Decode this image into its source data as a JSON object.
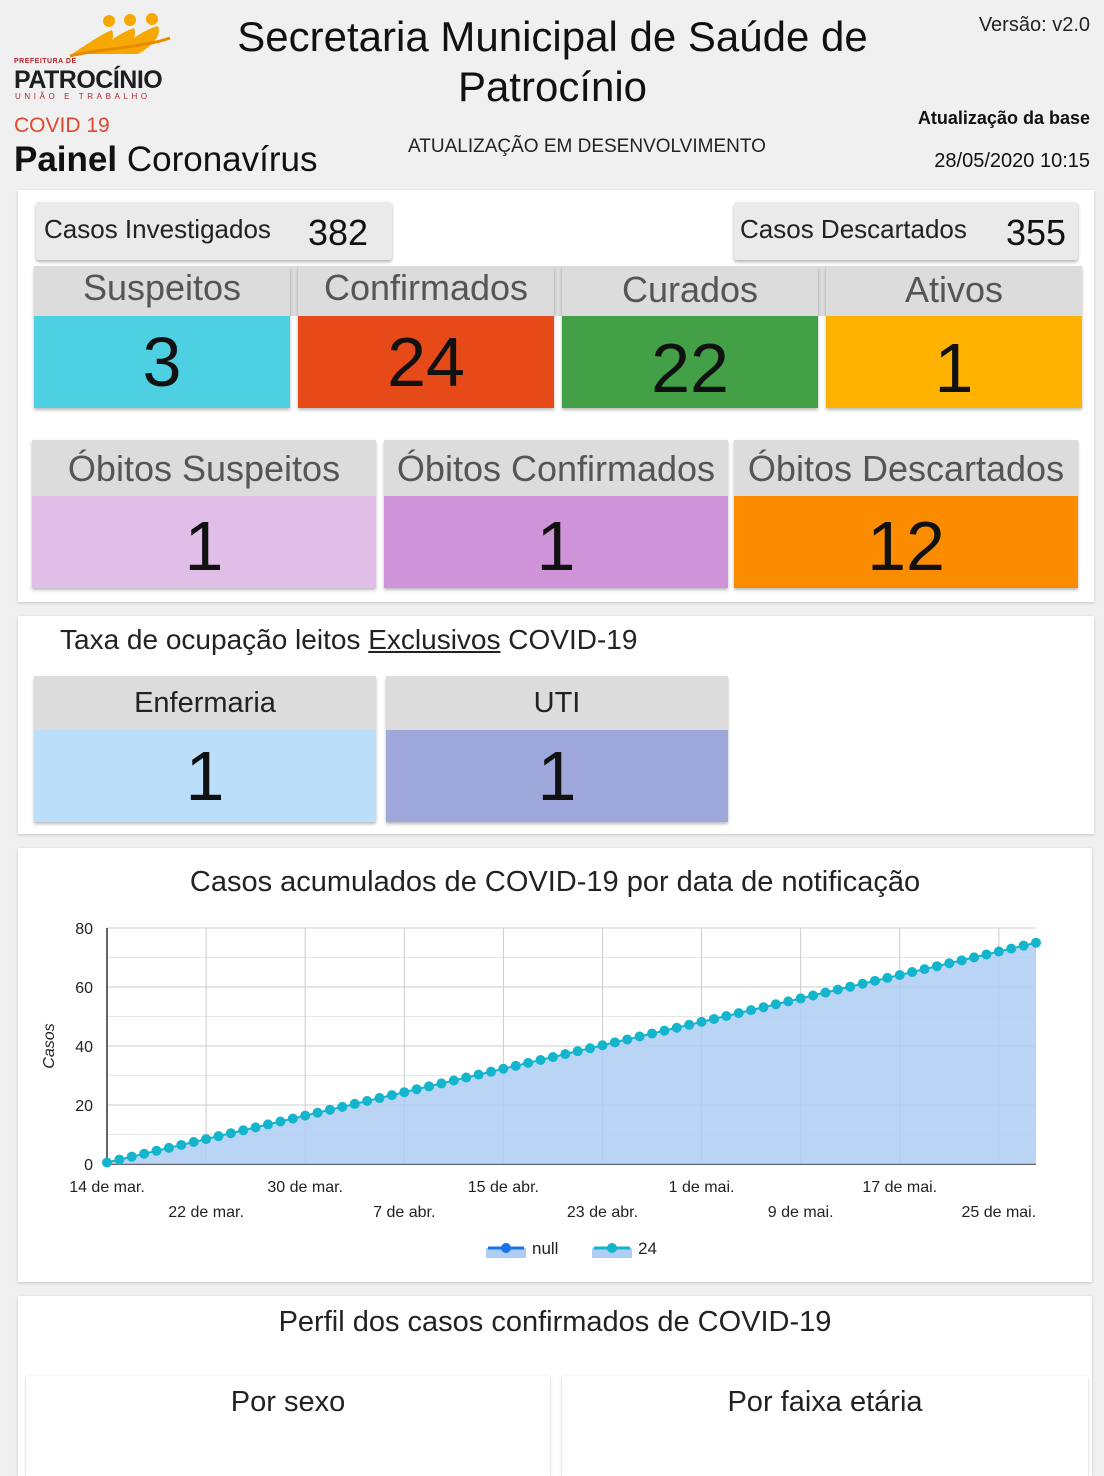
{
  "header": {
    "logo_small": "PREFEITURA DE",
    "logo_main": "PATROCÍNIO",
    "logo_sub": "UNIÃO E TRABALHO",
    "title": "Secretaria Municipal de Saúde de Patrocínio",
    "version": "Versão: v2.0",
    "covid_label": "COVID 19",
    "painel_bold": "Painel",
    "painel_rest": "Coronavírus",
    "dev_notice": "ATUALIZAÇÃO EM DESENVOLVIMENTO",
    "update_label": "Atualização da base",
    "update_date": "28/05/2020 10:15"
  },
  "totals": {
    "investigados_label": "Casos Investigados",
    "investigados_value": "382",
    "descartados_label": "Casos Descartados",
    "descartados_value": "355"
  },
  "status_cards": [
    {
      "label": "Suspeitos",
      "value": "3",
      "color": "#4dd0e1"
    },
    {
      "label": "Confirmados",
      "value": "24",
      "color": "#e64a19"
    },
    {
      "label": "Curados",
      "value": "22",
      "color": "#43a047"
    },
    {
      "label": "Ativos",
      "value": "1",
      "color": "#ffb300"
    }
  ],
  "obitos_cards": [
    {
      "label": "Óbitos Suspeitos",
      "value": "1",
      "color": "#e1bee7"
    },
    {
      "label": "Óbitos Confirmados",
      "value": "1",
      "color": "#ce93d8"
    },
    {
      "label": "Óbitos Descartados",
      "value": "12",
      "color": "#fb8c00"
    }
  ],
  "occupancy": {
    "title_pre": "Taxa de ocupação leitos ",
    "title_underlined": "Exclusivos",
    "title_post": " COVID-19",
    "cards": [
      {
        "label": "Enfermaria",
        "value": "1",
        "color": "#bbdefb"
      },
      {
        "label": "UTI",
        "value": "1",
        "color": "#9fa8da"
      }
    ]
  },
  "chart_data": {
    "type": "area",
    "title": "Casos acumulados de COVID-19 por data de notificação",
    "xlabel": "",
    "ylabel": "Casos",
    "ylim": [
      0,
      80
    ],
    "yticks": [
      0,
      20,
      40,
      60,
      80
    ],
    "xlim": [
      "2020-03-14",
      "2020-05-28"
    ],
    "xticks_row1": [
      "14 de mar.",
      "30 de mar.",
      "15 de abr.",
      "1 de mai.",
      "17 de mai."
    ],
    "xticks_row2": [
      "22 de mar.",
      "7 de abr.",
      "23 de abr.",
      "9 de mai.",
      "25 de mai."
    ],
    "grid": true,
    "legend_position": "bottom",
    "series": [
      {
        "name": "null",
        "color": "#1a73e8"
      },
      {
        "name": "24",
        "color": "#12b5cb",
        "x_start": "2020-03-14",
        "x_end": "2020-05-28",
        "interval_days": 1,
        "y_start": 0.5,
        "y_end": 75
      }
    ]
  },
  "perfil": {
    "title": "Perfil dos casos confirmados de COVID-19",
    "sexo_title": "Por sexo",
    "faixa_title": "Por faixa etária"
  }
}
